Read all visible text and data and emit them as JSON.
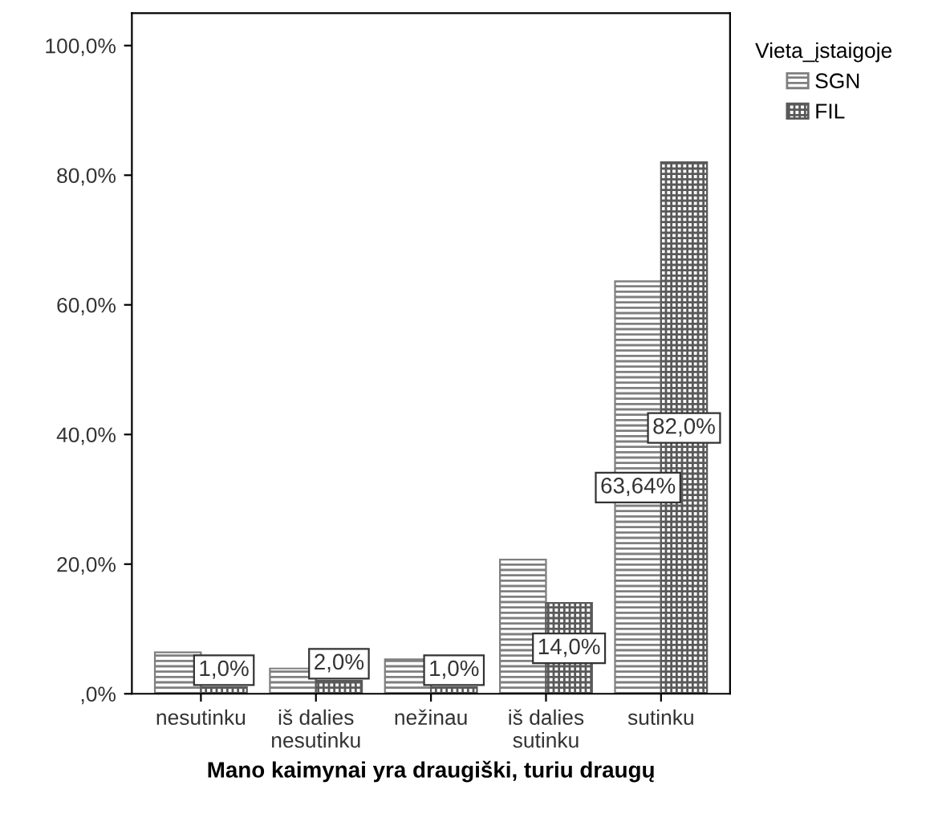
{
  "chart_data": {
    "type": "bar",
    "xlabel": "Mano kaimynai yra draugiški, turiu draugų",
    "legend_title": "Vieta_įstaigoje",
    "legend": "top right",
    "categories": [
      "nesutinku",
      "iš dalies\nnesutinku",
      "nežinau",
      "iš dalies\nsutinku",
      "sutinku"
    ],
    "series": [
      {
        "name": "SGN",
        "color": "#7f7f7f",
        "values": [
          6.4,
          3.9,
          5.3,
          20.7,
          63.64
        ],
        "value_labels": [
          null,
          null,
          null,
          null,
          "63,64%"
        ]
      },
      {
        "name": "FIL",
        "color": "#595959",
        "values": [
          1.0,
          2.0,
          1.0,
          14.0,
          82.0
        ],
        "value_labels": [
          "1,0%",
          "2,0%",
          "1,0%",
          "14,0%",
          "82,0%"
        ]
      }
    ],
    "ylim": [
      0,
      105
    ],
    "yticks": [
      {
        "value": 0,
        "label": ",0%"
      },
      {
        "value": 20,
        "label": "20,0%"
      },
      {
        "value": 40,
        "label": "40,0%"
      },
      {
        "value": 60,
        "label": "60,0%"
      },
      {
        "value": 80,
        "label": "80,0%"
      },
      {
        "value": 100,
        "label": "100,0%"
      }
    ],
    "grid": false
  }
}
